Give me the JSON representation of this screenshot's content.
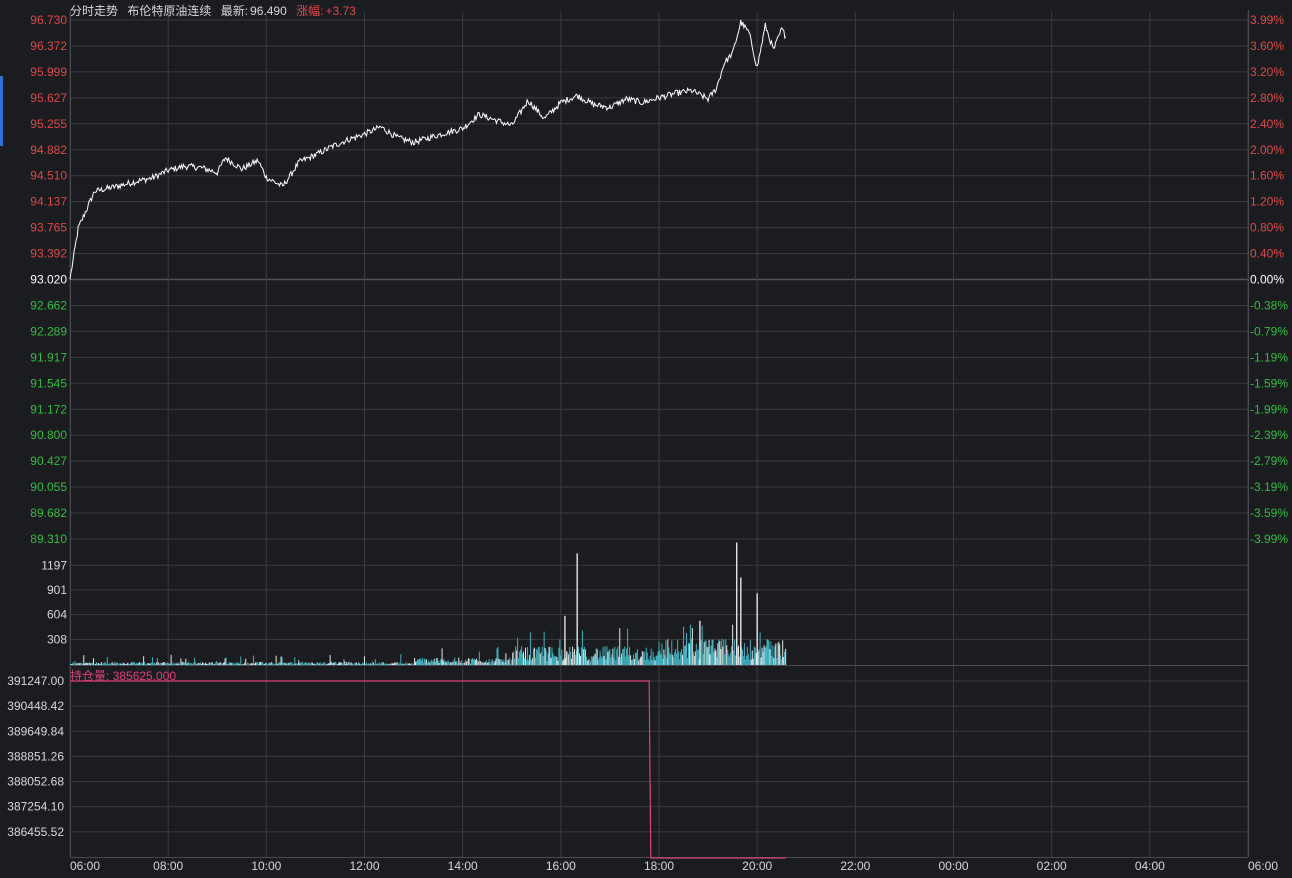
{
  "header": {
    "tab_label": "分时走势",
    "instrument": "布伦特原油连续",
    "latest_label": "最新:",
    "latest_value": "96.490",
    "change_label": "涨幅:",
    "change_value": "+3.73"
  },
  "open_interest_label": "持仓量: 385625.000",
  "colors": {
    "background": "#1b1c20",
    "grid": "#3a3b40",
    "up": "#e04848",
    "down": "#2fbf3f",
    "neutral": "#ffffff",
    "price_line": "#ffffff",
    "volume": "#3fb3c0",
    "open_interest": "#e0407a"
  },
  "chart_data": [
    {
      "type": "line",
      "name": "price",
      "base_price": 93.02,
      "ylim": [
        89.31,
        96.73
      ],
      "y_ticks_left": [
        "96.730",
        "96.372",
        "95.999",
        "95.627",
        "95.255",
        "94.882",
        "94.510",
        "94.137",
        "93.765",
        "93.392",
        "93.020",
        "92.662",
        "92.289",
        "91.917",
        "91.545",
        "91.172",
        "90.800",
        "90.427",
        "90.055",
        "89.682",
        "89.310"
      ],
      "y_ticks_right": [
        "3.99%",
        "3.60%",
        "3.20%",
        "2.80%",
        "2.40%",
        "2.00%",
        "1.60%",
        "1.20%",
        "0.80%",
        "0.40%",
        "0.00%",
        "-0.38%",
        "-0.79%",
        "-1.19%",
        "-1.59%",
        "-1.99%",
        "-2.39%",
        "-2.79%",
        "-3.19%",
        "-3.59%",
        "-3.99%"
      ],
      "x_ticks": [
        "06:00",
        "08:00",
        "10:00",
        "12:00",
        "14:00",
        "16:00",
        "18:00",
        "20:00",
        "22:00",
        "00:00",
        "02:00",
        "04:00",
        "06:00"
      ],
      "x": [
        "06:00",
        "06:10",
        "06:30",
        "07:00",
        "07:20",
        "07:40",
        "08:00",
        "08:20",
        "08:40",
        "09:00",
        "09:10",
        "09:30",
        "09:50",
        "10:00",
        "10:20",
        "10:30",
        "10:40",
        "11:00",
        "11:20",
        "11:40",
        "12:00",
        "12:20",
        "12:40",
        "13:00",
        "13:20",
        "13:40",
        "14:00",
        "14:20",
        "14:40",
        "15:00",
        "15:20",
        "15:40",
        "16:00",
        "16:20",
        "16:40",
        "17:00",
        "17:20",
        "17:40",
        "18:00",
        "18:20",
        "18:40",
        "19:00",
        "19:10",
        "19:20",
        "19:30",
        "19:40",
        "19:50",
        "20:00",
        "20:10",
        "20:20",
        "20:30",
        "20:35"
      ],
      "values": [
        93.02,
        93.75,
        94.28,
        94.36,
        94.42,
        94.47,
        94.58,
        94.64,
        94.62,
        94.55,
        94.76,
        94.6,
        94.72,
        94.48,
        94.35,
        94.52,
        94.7,
        94.8,
        94.92,
        95.02,
        95.1,
        95.2,
        95.05,
        94.98,
        95.05,
        95.12,
        95.18,
        95.38,
        95.3,
        95.22,
        95.58,
        95.32,
        95.55,
        95.65,
        95.52,
        95.48,
        95.6,
        95.55,
        95.62,
        95.68,
        95.72,
        95.6,
        95.75,
        96.12,
        96.25,
        96.7,
        96.55,
        96.05,
        96.65,
        96.3,
        96.6,
        96.49
      ]
    },
    {
      "type": "bar",
      "name": "volume",
      "y_ticks": [
        "1197",
        "901",
        "604",
        "308"
      ],
      "ylim": [
        0,
        1500
      ],
      "spikes": [
        {
          "x": "16:20",
          "value": 1340
        },
        {
          "x": "19:35",
          "value": 1470
        },
        {
          "x": "19:40",
          "value": 1050
        },
        {
          "x": "20:00",
          "value": 860
        },
        {
          "x": "16:05",
          "value": 590
        },
        {
          "x": "18:50",
          "value": 530
        }
      ],
      "profile": [
        {
          "from": "06:00",
          "to": "13:00",
          "typical": 25,
          "max": 130
        },
        {
          "from": "13:00",
          "to": "15:00",
          "typical": 60,
          "max": 220
        },
        {
          "from": "15:00",
          "to": "18:00",
          "typical": 150,
          "max": 480
        },
        {
          "from": "18:00",
          "to": "20:35",
          "typical": 210,
          "max": 560
        }
      ]
    },
    {
      "type": "line",
      "name": "open_interest",
      "y_ticks": [
        "391247.00",
        "390448.42",
        "389649.84",
        "388851.26",
        "388052.68",
        "387254.10",
        "386455.52"
      ],
      "ylim": [
        385656.94,
        391247.0
      ],
      "x": [
        "06:00",
        "17:48",
        "17:49",
        "17:50",
        "20:35"
      ],
      "values": [
        391247.0,
        391247.0,
        388200.0,
        385625.0,
        385625.0
      ]
    }
  ]
}
